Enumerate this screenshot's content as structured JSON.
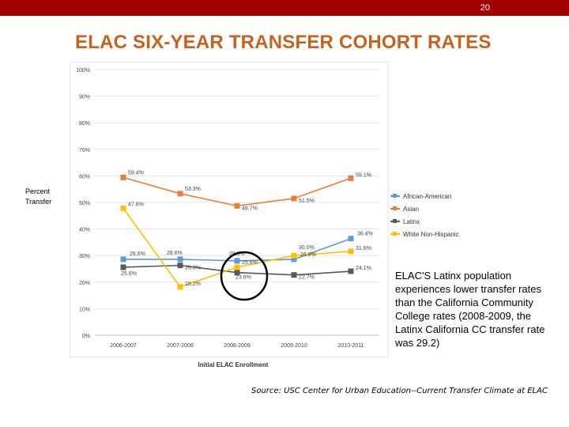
{
  "page_number": "20",
  "slide_title": "ELAC SIX-YEAR TRANSFER  COHORT RATES",
  "y_axis_label": "Percent Transfer",
  "annotation_text": "ELAC'S Latinx population experiences lower transfer rates than the California Community College rates (2008-2009, the Latinx California CC transfer rate was 29.2)",
  "source_text": "Source: USC Center for Urban Education--Current Transfer Climate at ELAC",
  "colors": {
    "accent_bar": "#a00000",
    "title": "#c8611e",
    "african_american": "#5b9bd5",
    "asian": "#ed7d31",
    "latinx": "#595959",
    "white": "#ffc000"
  },
  "chart_data": {
    "type": "line",
    "title": "",
    "xlabel": "Initial  ELAC Enrollment",
    "ylabel": "Percent Transfer",
    "categories": [
      "2006-2007",
      "2007-2008",
      "2008-2009",
      "2009-2010",
      "2010-2011"
    ],
    "ylim": [
      0,
      100
    ],
    "y_ticks": [
      "0%",
      "10%",
      "20%",
      "30%",
      "40%",
      "50%",
      "60%",
      "70%",
      "80%",
      "90%",
      "100%"
    ],
    "legend_position": "right",
    "series": [
      {
        "name": "African-American",
        "color": "#5b9bd5",
        "values": [
          28.6,
          28.6,
          28.0,
          28.6,
          36.4
        ],
        "labels": [
          "28.6%",
          "28.6%",
          "28.0%",
          "28.6%",
          "36.4%"
        ]
      },
      {
        "name": "Asian",
        "color": "#ed7d31",
        "values": [
          59.4,
          53.3,
          48.7,
          51.5,
          59.1
        ],
        "labels": [
          "59.4%",
          "53.3%",
          "48.7%",
          "51.5%",
          "59.1%"
        ]
      },
      {
        "name": "Latinx",
        "color": "#595959",
        "values": [
          25.6,
          26.3,
          23.6,
          22.7,
          24.1
        ],
        "labels": [
          "25.6%",
          "26.3%",
          "23.6%",
          "22.7%",
          "24.1%"
        ]
      },
      {
        "name": "White Non-Hispanic",
        "color": "#ffc000",
        "values": [
          47.8,
          18.2,
          25.6,
          30.0,
          31.6
        ],
        "labels": [
          "47.8%",
          "18.2%",
          "25.6%",
          "30.0%",
          "31.6%"
        ]
      }
    ]
  }
}
